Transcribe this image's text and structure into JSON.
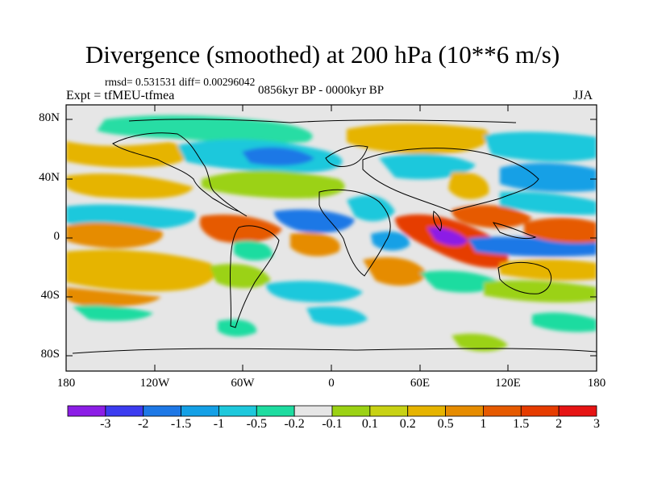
{
  "header": {
    "title": "Divergence (smoothed) at 200 hPa (10**6 m/s)",
    "stats": "rmsd= 0.531531 diff= 0.00296042",
    "experiment": "Expt = tfMEU-tfmea",
    "period": "0856kyr BP - 0000kyr BP",
    "season": "JJA"
  },
  "axes": {
    "y_ticks": [
      "80N",
      "40N",
      "0",
      "40S",
      "80S"
    ],
    "x_ticks": [
      "180",
      "120W",
      "60W",
      "0",
      "60E",
      "120E",
      "180"
    ]
  },
  "colorbar": {
    "labels": [
      "-3",
      "-2",
      "-1.5",
      "-1",
      "-0.5",
      "-0.2",
      "-0.1",
      "0.1",
      "0.2",
      "0.5",
      "1",
      "1.5",
      "2",
      "3"
    ],
    "colors": [
      "#8c1ee6",
      "#3c3cf0",
      "#1e78e6",
      "#14a0e6",
      "#1ec8dc",
      "#1edca0",
      "#e6e6e6",
      "#9bd214",
      "#c8d214",
      "#e6b400",
      "#e68c00",
      "#e65a00",
      "#e63c00",
      "#e61414"
    ]
  }
}
